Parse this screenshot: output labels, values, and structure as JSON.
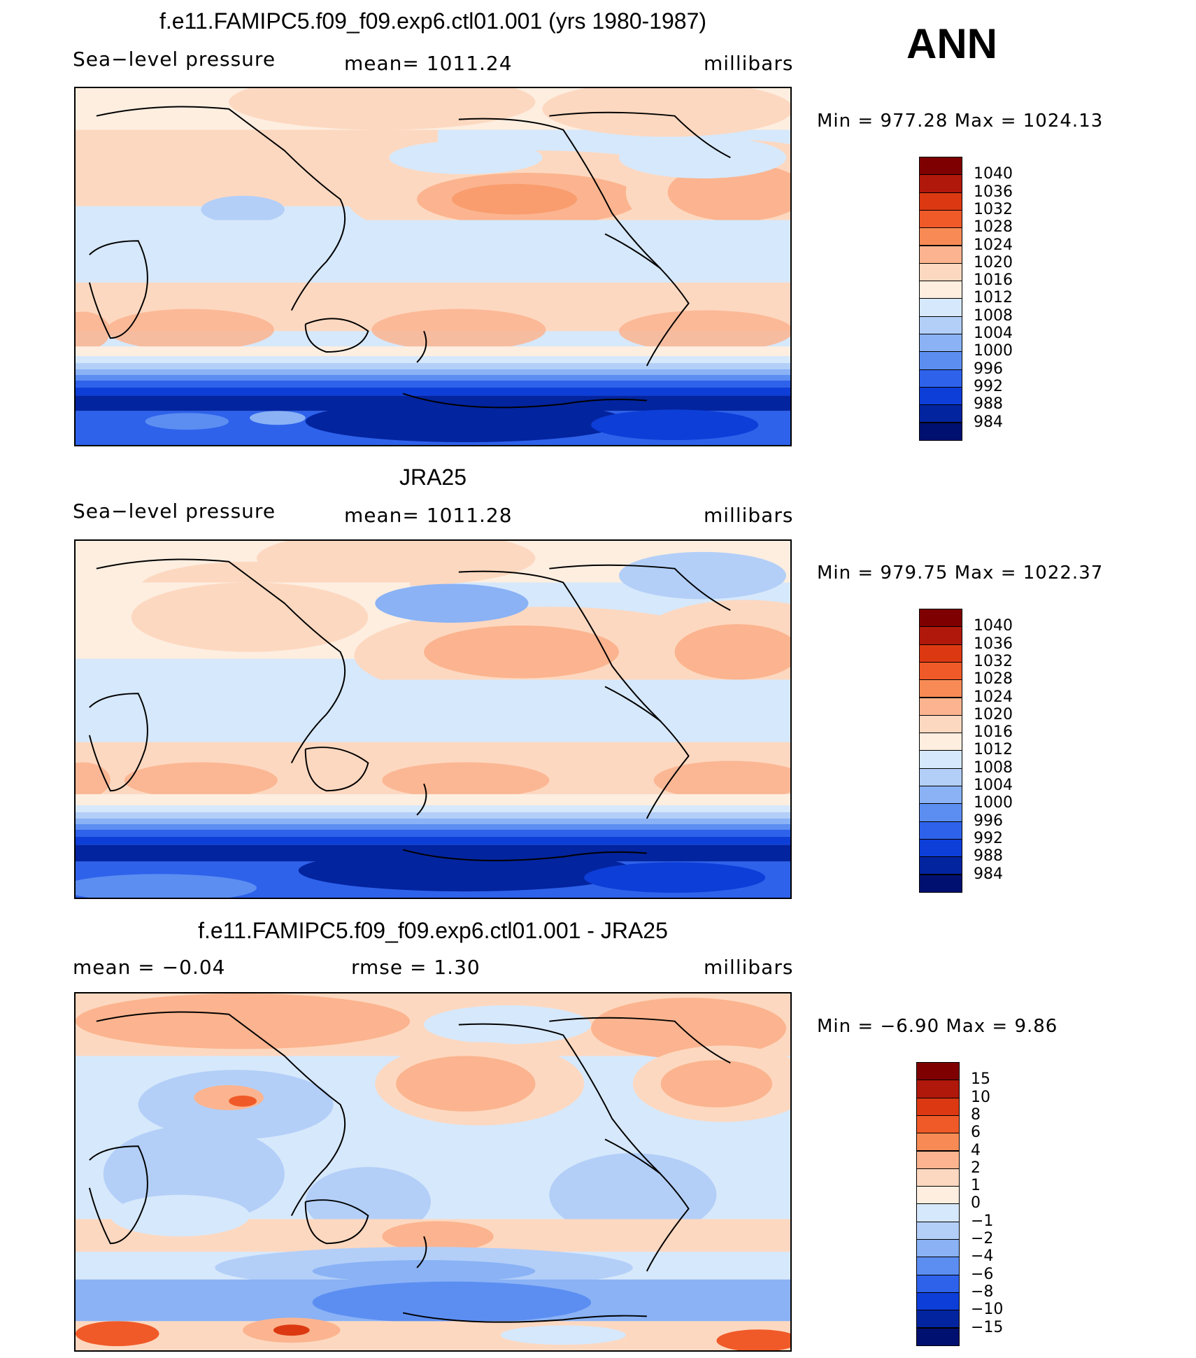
{
  "season": "ANN",
  "panels": [
    {
      "title": "f.e11.FAMIPC5.f09_f09.exp6.ctl01.001 (yrs 1980-1987)",
      "left": "Sea−level pressure",
      "center": "mean=  1011.24",
      "right": "millibars",
      "minmax": "Min  =  977.28  Max  =  1024.13",
      "colorbar": {
        "labels": [
          "1040",
          "1036",
          "1032",
          "1028",
          "1024",
          "1020",
          "1016",
          "1012",
          "1008",
          "1004",
          "1000",
          "996",
          "992",
          "988",
          "984"
        ],
        "colors": [
          "#7f0000",
          "#b0180b",
          "#dc3912",
          "#f05a28",
          "#f88b55",
          "#fbb48f",
          "#fdd8c0",
          "#fdeee0",
          "#d6e8fb",
          "#b3cff8",
          "#8ab2f5",
          "#5c8ef2",
          "#2e62eb",
          "#0d3ed8",
          "#03249f",
          "#001070"
        ]
      }
    },
    {
      "title": "JRA25",
      "left": "Sea−level pressure",
      "center": "mean=  1011.28",
      "right": "millibars",
      "minmax": "Min  =  979.75  Max  =  1022.37",
      "colorbar": {
        "labels": [
          "1040",
          "1036",
          "1032",
          "1028",
          "1024",
          "1020",
          "1016",
          "1012",
          "1008",
          "1004",
          "1000",
          "996",
          "992",
          "988",
          "984"
        ],
        "colors": [
          "#7f0000",
          "#b0180b",
          "#dc3912",
          "#f05a28",
          "#f88b55",
          "#fbb48f",
          "#fdd8c0",
          "#fdeee0",
          "#d6e8fb",
          "#b3cff8",
          "#8ab2f5",
          "#5c8ef2",
          "#2e62eb",
          "#0d3ed8",
          "#03249f",
          "#001070"
        ]
      }
    },
    {
      "title": "f.e11.FAMIPC5.f09_f09.exp6.ctl01.001 - JRA25",
      "left": "mean  =    −0.04",
      "center": "rmse  =     1.30",
      "right": "millibars",
      "minmax": "Min  =   −6.90  Max  =      9.86",
      "colorbar": {
        "labels": [
          "15",
          "10",
          "8",
          "6",
          "4",
          "2",
          "1",
          "0",
          "−1",
          "−2",
          "−4",
          "−6",
          "−8",
          "−10",
          "−15"
        ],
        "colors": [
          "#7f0000",
          "#b0180b",
          "#dc3912",
          "#f05a28",
          "#f88b55",
          "#fbb48f",
          "#fdd8c0",
          "#fdeee0",
          "#d6e8fb",
          "#b3cff8",
          "#8ab2f5",
          "#5c8ef2",
          "#2e62eb",
          "#0d3ed8",
          "#03249f",
          "#001070"
        ]
      }
    }
  ]
}
